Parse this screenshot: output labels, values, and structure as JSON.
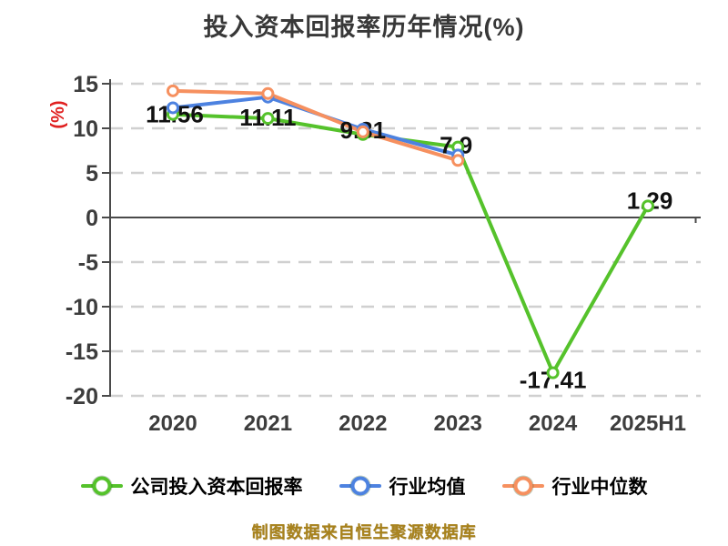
{
  "title": {
    "text": "投入资本回报率历年情况(%)",
    "color": "#383838"
  },
  "caption": {
    "text": "制图数据来自恒生聚源数据库",
    "color": "#a8821c"
  },
  "axis": {
    "ylabel": "(%)",
    "ylabel_color": "#e02020",
    "tick_color": "#3d3d3d",
    "line_color": "#4a4a4a",
    "grid_color": "#d0d0d0"
  },
  "legend": {
    "items": [
      {
        "key": "company_roic",
        "label": "公司投入资本回报率",
        "color": "#55c22b"
      },
      {
        "key": "industry_mean",
        "label": "行业均值",
        "color": "#4d82e0"
      },
      {
        "key": "industry_median",
        "label": "行业中位数",
        "color": "#f6905f"
      }
    ]
  },
  "chart_data": {
    "type": "line",
    "title": "投入资本回报率历年情况(%)",
    "xlabel": "",
    "ylabel": "(%)",
    "categories": [
      "2020",
      "2021",
      "2022",
      "2023",
      "2024",
      "2025H1"
    ],
    "yticks": [
      15,
      10,
      5,
      0,
      -5,
      -10,
      -15,
      -20
    ],
    "ylim": [
      -20,
      15
    ],
    "grid": "horizontal-dashed, zero line solid",
    "legend_position": "bottom",
    "series": [
      {
        "key": "company_roic",
        "name": "公司投入资本回报率",
        "color": "#55c22b",
        "values": [
          11.56,
          11.11,
          9.31,
          7.9,
          -17.41,
          1.29
        ],
        "point_labels": [
          "11.56",
          "11.11",
          "9.31",
          "7.9",
          "-17.41",
          "1.29"
        ]
      },
      {
        "key": "industry_mean",
        "name": "行业均值",
        "color": "#4d82e0",
        "values": [
          12.3,
          13.5,
          9.9,
          7.0,
          null,
          null
        ],
        "point_labels": []
      },
      {
        "key": "industry_median",
        "name": "行业中位数",
        "color": "#f6905f",
        "values": [
          14.2,
          13.9,
          9.6,
          6.4,
          null,
          null
        ],
        "point_labels": []
      }
    ],
    "label_color": "#111111",
    "marker": "circle-white-fill"
  }
}
